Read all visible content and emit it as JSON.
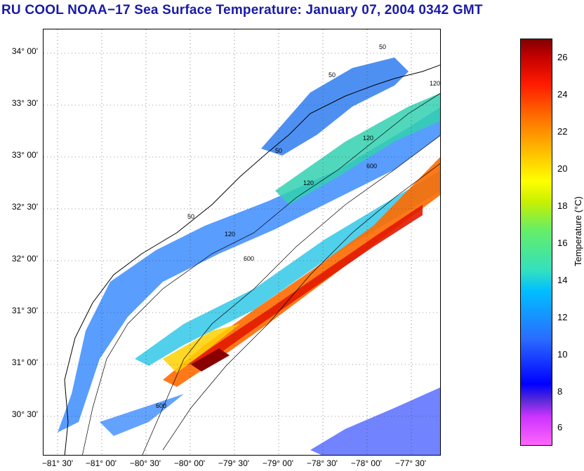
{
  "title": "RU COOL  NOAA−17  Sea Surface Temperature:  January 07, 2004 0342 GMT",
  "latitude_labels": [
    "34° 00'",
    "33° 30'",
    "33° 00'",
    "32° 30'",
    "32° 00'",
    "31° 30'",
    "31° 00'",
    "30° 30'"
  ],
  "longitude_labels": [
    "−81° 30'",
    "−81° 00'",
    "−80° 30'",
    "−80° 00'",
    "−79° 30'",
    "−79° 00'",
    "−78° 30'",
    "−78° 00'",
    "−77° 30'"
  ],
  "isobath_labels": [
    "50",
    "50",
    "50",
    "50",
    "120",
    "120",
    "120",
    "120",
    "600",
    "600",
    "600"
  ],
  "colorbar": {
    "title": "Temperature (°C)",
    "ticks": [
      "26",
      "24",
      "22",
      "20",
      "18",
      "16",
      "14",
      "12",
      "10",
      "8",
      "6"
    ],
    "range": [
      5,
      27
    ]
  },
  "colors": {
    "title": "#1a1aa8",
    "coast": "#000000"
  }
}
